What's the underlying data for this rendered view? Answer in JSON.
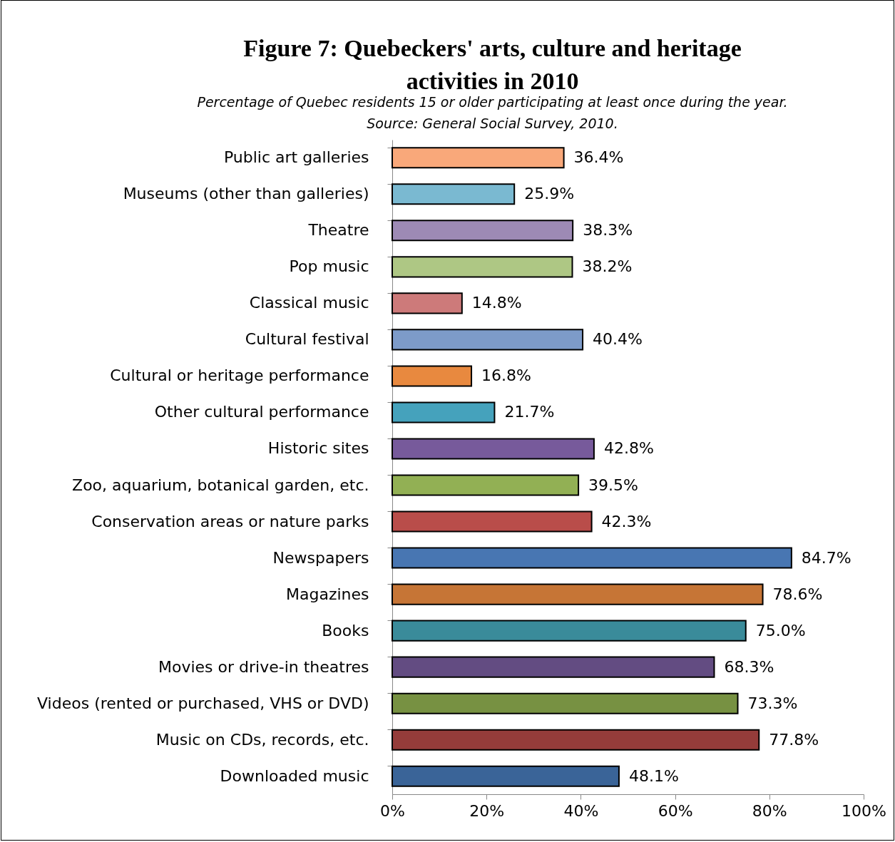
{
  "chart_data": {
    "type": "bar",
    "orientation": "horizontal",
    "title": "Figure 7: Quebeckers' arts, culture and heritage activities in 2010",
    "subtitle": "Percentage of Quebec residents 15 or older participating at least once during the year.",
    "annotations": [
      "Source: General Social Survey, 2010."
    ],
    "categories": [
      "Public art galleries",
      "Museums (other than galleries)",
      "Theatre",
      "Pop music",
      "Classical music",
      "Cultural festival",
      "Cultural or heritage performance",
      "Other cultural performance",
      "Historic sites",
      "Zoo, aquarium, botanical garden, etc.",
      "Conservation areas or nature parks",
      "Newspapers",
      "Magazines",
      "Books",
      "Movies or drive-in theatres",
      "Videos (rented or purchased, VHS or DVD)",
      "Music on CDs, records, etc.",
      "Downloaded music"
    ],
    "values": [
      36.4,
      25.9,
      38.3,
      38.2,
      14.8,
      40.4,
      16.8,
      21.7,
      42.8,
      39.5,
      42.3,
      84.7,
      78.6,
      75.0,
      68.3,
      73.3,
      77.8,
      48.1
    ],
    "value_labels": [
      "36.4%",
      "25.9%",
      "38.3%",
      "38.2%",
      "14.8%",
      "40.4%",
      "16.8%",
      "21.7%",
      "42.8%",
      "39.5%",
      "42.3%",
      "84.7%",
      "78.6%",
      "75.0%",
      "68.3%",
      "73.3%",
      "77.8%",
      "48.1%"
    ],
    "colors": [
      "#f9a87a",
      "#7ab9d1",
      "#9d8ab5",
      "#aec784",
      "#cd7a7a",
      "#7d9bc9",
      "#e8893f",
      "#45a2bc",
      "#775a9b",
      "#92b054",
      "#b94d4a",
      "#4876b2",
      "#c67536",
      "#3a8b9a",
      "#634c82",
      "#779142",
      "#953c3a",
      "#3a6498"
    ],
    "xlim": [
      0,
      100
    ],
    "xticks": [
      {
        "value": 0,
        "label": "0%"
      },
      {
        "value": 20,
        "label": "20%"
      },
      {
        "value": 40,
        "label": "40%"
      },
      {
        "value": 60,
        "label": "60%"
      },
      {
        "value": 80,
        "label": "80%"
      },
      {
        "value": 100,
        "label": "100%"
      }
    ],
    "grid": false
  }
}
